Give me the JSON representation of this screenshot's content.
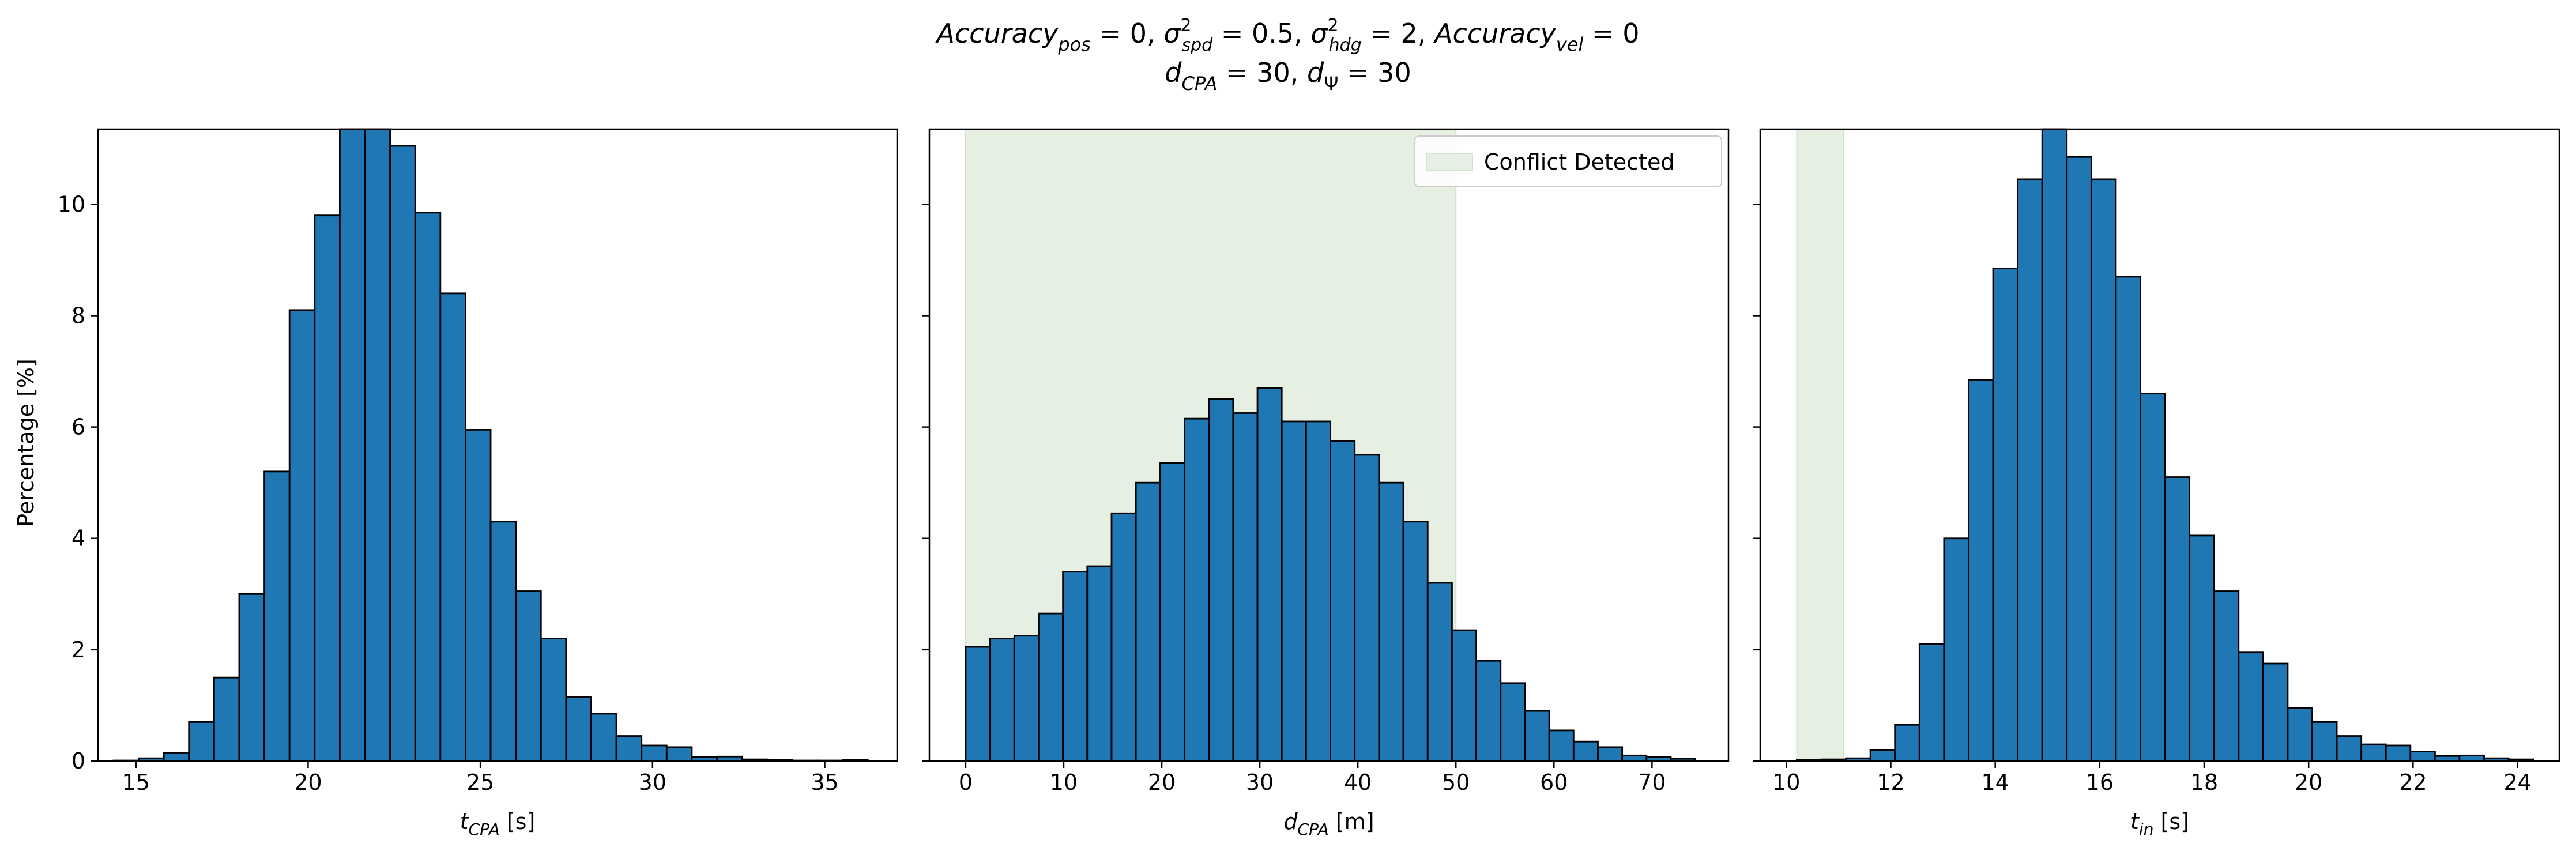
{
  "title": {
    "line1": "Accuracy_pos = 0, σ²_spd = 0.5, σ²_hdg = 2, Accuracy_vel = 0",
    "line2": "d_CPA = 30, d_Ψ = 30"
  },
  "ylabel": "Percentage [%]",
  "legend": {
    "label": "Conflict Detected",
    "color": "#d9ead3"
  },
  "colors": {
    "bar": "#1f77b4",
    "edge": "#000000",
    "shade": "#e5f0e3",
    "shade_edge": "#cfe4cb"
  },
  "chart_data": [
    {
      "type": "bar",
      "xlabel": "t_CPA [s]",
      "xlim": [
        13.9,
        37.1
      ],
      "ylim": [
        0,
        11.35
      ],
      "xticks": [
        15,
        20,
        25,
        30,
        35
      ],
      "yticks": [
        0,
        2,
        4,
        6,
        8,
        10
      ],
      "bin_start": 14.35,
      "bin_width": 0.73,
      "values": [
        0.01,
        0.05,
        0.15,
        0.7,
        1.5,
        3.0,
        5.2,
        8.1,
        9.8,
        11.35,
        11.35,
        11.05,
        9.85,
        8.4,
        5.95,
        4.3,
        3.05,
        2.2,
        1.15,
        0.85,
        0.45,
        0.28,
        0.25,
        0.07,
        0.08,
        0.03,
        0.02,
        0.01,
        0.01,
        0.02
      ],
      "shade": null
    },
    {
      "type": "bar",
      "xlabel": "d_CPA [m]",
      "xlim": [
        -3.7,
        77.8
      ],
      "ylim": [
        0,
        11.35
      ],
      "xticks": [
        0,
        10,
        20,
        30,
        40,
        50,
        60,
        70
      ],
      "yticks": [
        0,
        2,
        4,
        6,
        8,
        10
      ],
      "bin_start": 0.0,
      "bin_width": 2.48,
      "values": [
        2.05,
        2.2,
        2.25,
        2.65,
        3.4,
        3.5,
        4.45,
        5.0,
        5.35,
        6.15,
        6.5,
        6.25,
        6.7,
        6.1,
        6.1,
        5.75,
        5.5,
        5.0,
        4.3,
        3.2,
        2.35,
        1.8,
        1.4,
        0.9,
        0.55,
        0.35,
        0.25,
        0.1,
        0.07,
        0.04
      ],
      "shade": [
        0,
        50
      ],
      "legend_loc": "upper right"
    },
    {
      "type": "bar",
      "xlabel": "t_in [s]",
      "xlim": [
        9.5,
        24.8
      ],
      "ylim": [
        0,
        11.35
      ],
      "xticks": [
        10,
        12,
        14,
        16,
        18,
        20,
        22,
        24
      ],
      "yticks": [
        0,
        2,
        4,
        6,
        8,
        10
      ],
      "bin_start": 10.2,
      "bin_width": 0.47,
      "values": [
        0.02,
        0.03,
        0.05,
        0.2,
        0.65,
        2.1,
        4.0,
        6.85,
        8.85,
        10.45,
        11.35,
        10.85,
        10.45,
        8.7,
        6.6,
        5.1,
        4.05,
        3.05,
        1.95,
        1.75,
        0.95,
        0.7,
        0.45,
        0.3,
        0.28,
        0.17,
        0.09,
        0.1,
        0.05,
        0.03
      ],
      "shade": [
        10.2,
        11.1
      ]
    }
  ]
}
